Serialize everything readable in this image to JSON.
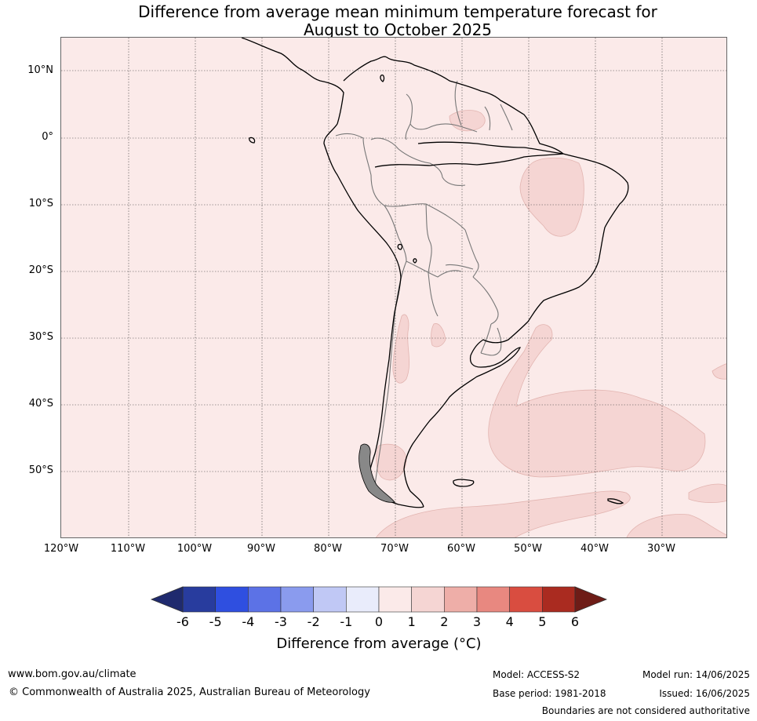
{
  "title_line1": "Difference from average mean minimum temperature forecast for",
  "title_line2": "August to October 2025",
  "map": {
    "lat_labels": [
      "10°N",
      "0°",
      "10°S",
      "20°S",
      "30°S",
      "40°S",
      "50°S"
    ],
    "lon_labels": [
      "120°W",
      "110°W",
      "100°W",
      "90°W",
      "80°W",
      "70°W",
      "60°W",
      "50°W",
      "40°W",
      "30°W"
    ],
    "background_color": "#fbeae9",
    "anomaly_colors": {
      "0_to_1": "#fbeae9",
      "1_to_2": "#f5d5d3"
    }
  },
  "colorbar": {
    "ticks": [
      "-6",
      "-5",
      "-4",
      "-3",
      "-2",
      "-1",
      "0",
      "1",
      "2",
      "3",
      "4",
      "5",
      "6"
    ],
    "colors": [
      "#283c9e",
      "#2f4fe0",
      "#5c72e6",
      "#8a9bee",
      "#c0c8f5",
      "#e9ecfb",
      "#fbeae9",
      "#f5d5d3",
      "#eeaea8",
      "#e88880",
      "#d94d40",
      "#aa2b20"
    ],
    "under_color": "#1f2a6e",
    "over_color": "#6e1c17",
    "label": "Difference from average (°C)"
  },
  "footer": {
    "website": "www.bom.gov.au/climate",
    "copyright": "© Commonwealth of Australia 2025, Australian Bureau of Meteorology",
    "model": "Model: ACCESS-S2",
    "base_period": "Base period: 1981-2018",
    "model_run": "Model run: 14/06/2025",
    "issued": "Issued: 16/06/2025",
    "disclaimer": "Boundaries are not considered authoritative"
  }
}
